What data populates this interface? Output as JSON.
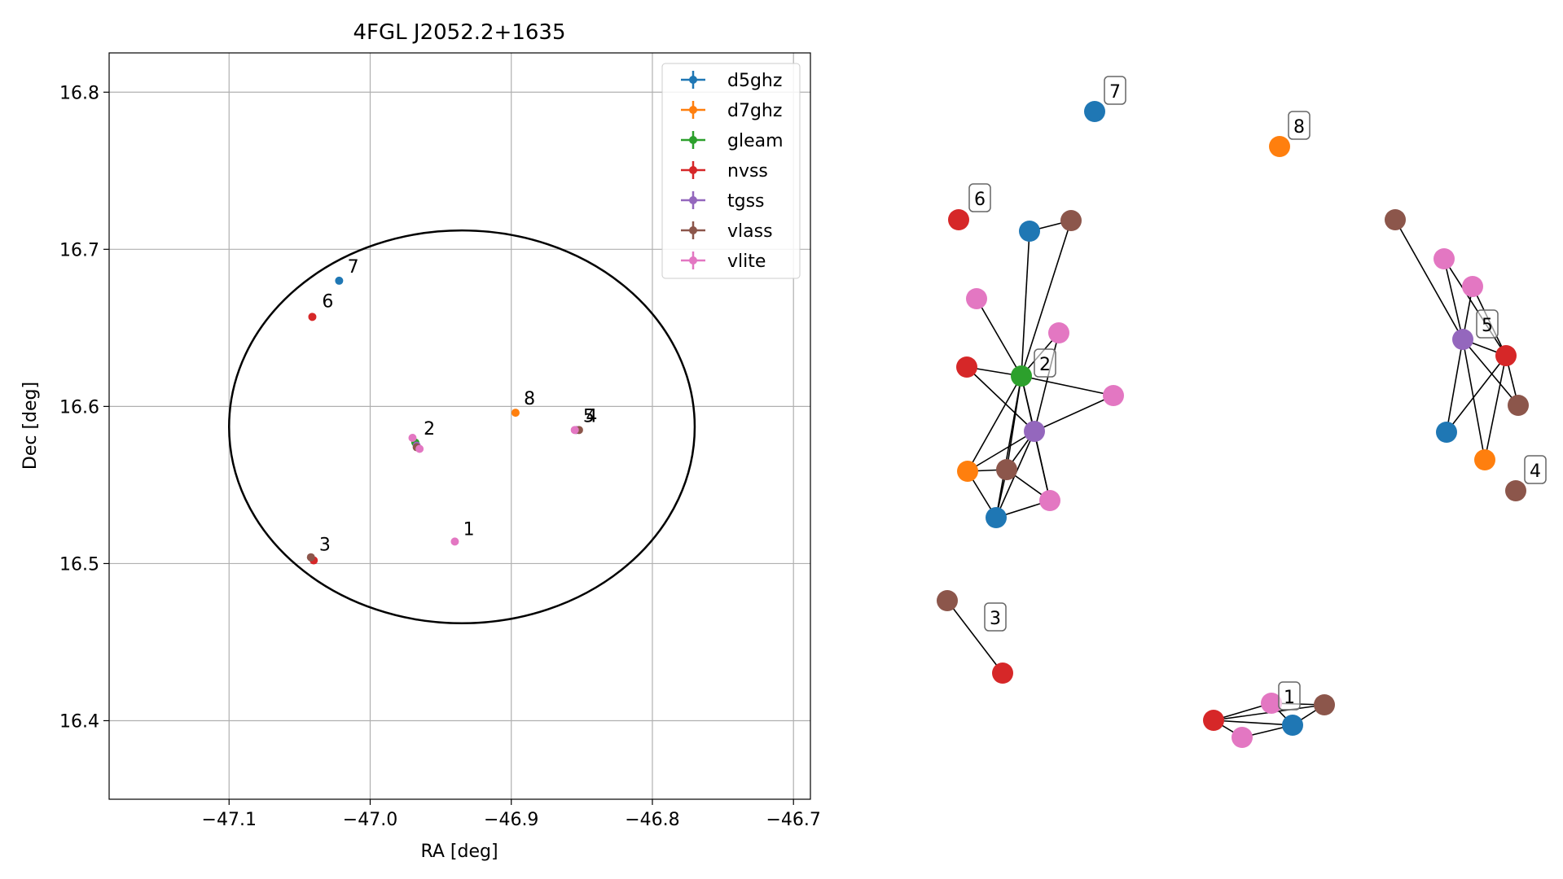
{
  "chart_data": [
    {
      "type": "scatter",
      "title": "4FGL J2052.2+1635",
      "xlabel": "RA [deg]",
      "ylabel": "Dec [deg]",
      "xlim": [
        -47.185,
        -46.688
      ],
      "ylim": [
        16.35,
        16.825
      ],
      "xticks": [
        -47.1,
        -47.0,
        -46.9,
        -46.8,
        -46.7
      ],
      "xtick_labels": [
        "−47.1",
        "−47.0",
        "−46.9",
        "−46.8",
        "−46.7"
      ],
      "yticks": [
        16.4,
        16.5,
        16.6,
        16.7,
        16.8
      ],
      "ytick_labels": [
        "16.4",
        "16.5",
        "16.6",
        "16.7",
        "16.8"
      ],
      "grid": true,
      "legend_position": "top-right",
      "series": [
        {
          "name": "d5ghz",
          "color": "#1f77b4",
          "points": [
            {
              "x": -47.022,
              "y": 16.68
            }
          ]
        },
        {
          "name": "d7ghz",
          "color": "#ff7f0e",
          "points": [
            {
              "x": -46.897,
              "y": 16.596
            }
          ]
        },
        {
          "name": "gleam",
          "color": "#2ca02c",
          "points": [
            {
              "x": -46.968,
              "y": 16.577
            }
          ]
        },
        {
          "name": "nvss",
          "color": "#d62728",
          "points": [
            {
              "x": -47.041,
              "y": 16.657
            },
            {
              "x": -47.04,
              "y": 16.502
            }
          ]
        },
        {
          "name": "tgss",
          "color": "#9467bd",
          "points": [
            {
              "x": -46.967,
              "y": 16.575
            },
            {
              "x": -46.854,
              "y": 16.585
            }
          ]
        },
        {
          "name": "vlass",
          "color": "#8c564b",
          "points": [
            {
              "x": -46.967,
              "y": 16.574
            },
            {
              "x": -47.042,
              "y": 16.504
            },
            {
              "x": -46.852,
              "y": 16.585
            }
          ]
        },
        {
          "name": "vlite",
          "color": "#e377c2",
          "points": [
            {
              "x": -46.97,
              "y": 16.58
            },
            {
              "x": -46.965,
              "y": 16.573
            },
            {
              "x": -46.94,
              "y": 16.514
            },
            {
              "x": -46.855,
              "y": 16.585
            }
          ]
        }
      ],
      "ellipse": {
        "center_x": -46.935,
        "center_y": 16.587,
        "radius_x": 0.165,
        "radius_y": 0.125
      },
      "cluster_labels": [
        {
          "text": "1",
          "x": -46.937,
          "y": 16.514
        },
        {
          "text": "2",
          "x": -46.965,
          "y": 16.578
        },
        {
          "text": "3",
          "x": -47.039,
          "y": 16.504
        },
        {
          "text": "4",
          "x": -46.85,
          "y": 16.586
        },
        {
          "text": "5",
          "x": -46.852,
          "y": 16.586
        },
        {
          "text": "6",
          "x": -47.037,
          "y": 16.659
        },
        {
          "text": "7",
          "x": -47.019,
          "y": 16.681
        },
        {
          "text": "8",
          "x": -46.894,
          "y": 16.597
        }
      ]
    },
    {
      "type": "network",
      "colors": {
        "d5ghz": "#1f77b4",
        "d7ghz": "#ff7f0e",
        "gleam": "#2ca02c",
        "nvss": "#d62728",
        "tgss": "#9467bd",
        "vlass": "#8c564b",
        "vlite": "#e377c2"
      },
      "cluster_labels": [
        "1",
        "2",
        "3",
        "4",
        "5",
        "6",
        "7",
        "8"
      ],
      "nodes": [
        {
          "id": "g2",
          "cat": "gleam"
        },
        {
          "id": "t2",
          "cat": "tgss"
        },
        {
          "id": "n2",
          "cat": "nvss"
        },
        {
          "id": "o2",
          "cat": "d7ghz"
        },
        {
          "id": "b2a",
          "cat": "d5ghz"
        },
        {
          "id": "b2b",
          "cat": "d5ghz"
        },
        {
          "id": "br2a",
          "cat": "vlass"
        },
        {
          "id": "br2b",
          "cat": "vlass"
        },
        {
          "id": "p2a",
          "cat": "vlite"
        },
        {
          "id": "p2b",
          "cat": "vlite"
        },
        {
          "id": "p2c",
          "cat": "vlite"
        },
        {
          "id": "p2d",
          "cat": "vlite"
        },
        {
          "id": "n6",
          "cat": "nvss"
        },
        {
          "id": "b7",
          "cat": "d5ghz"
        },
        {
          "id": "o8",
          "cat": "d7ghz"
        },
        {
          "id": "br3",
          "cat": "vlass"
        },
        {
          "id": "n3",
          "cat": "nvss"
        },
        {
          "id": "n1",
          "cat": "nvss"
        },
        {
          "id": "p1a",
          "cat": "vlite"
        },
        {
          "id": "p1b",
          "cat": "vlite"
        },
        {
          "id": "b1",
          "cat": "d5ghz"
        },
        {
          "id": "br1",
          "cat": "vlass"
        },
        {
          "id": "t5",
          "cat": "tgss"
        },
        {
          "id": "n5",
          "cat": "nvss"
        },
        {
          "id": "br5a",
          "cat": "vlass"
        },
        {
          "id": "br5b",
          "cat": "vlass"
        },
        {
          "id": "p5a",
          "cat": "vlite"
        },
        {
          "id": "p5b",
          "cat": "vlite"
        },
        {
          "id": "b5",
          "cat": "d5ghz"
        },
        {
          "id": "o5",
          "cat": "d7ghz"
        },
        {
          "id": "br4",
          "cat": "vlass"
        }
      ],
      "edges": [
        [
          "g2",
          "t2"
        ],
        [
          "g2",
          "n2"
        ],
        [
          "g2",
          "o2"
        ],
        [
          "g2",
          "b2a"
        ],
        [
          "g2",
          "b2b"
        ],
        [
          "g2",
          "br2a"
        ],
        [
          "g2",
          "br2b"
        ],
        [
          "g2",
          "p2a"
        ],
        [
          "g2",
          "p2b"
        ],
        [
          "g2",
          "p2c"
        ],
        [
          "g2",
          "p2d"
        ],
        [
          "t2",
          "n2"
        ],
        [
          "t2",
          "o2"
        ],
        [
          "t2",
          "b2a"
        ],
        [
          "t2",
          "br2a"
        ],
        [
          "t2",
          "p2a"
        ],
        [
          "t2",
          "p2c"
        ],
        [
          "t2",
          "p2d"
        ],
        [
          "o2",
          "b2a"
        ],
        [
          "o2",
          "br2a"
        ],
        [
          "b2a",
          "br2a"
        ],
        [
          "b2a",
          "p2d"
        ],
        [
          "br2a",
          "p2d"
        ],
        [
          "b2b",
          "br2b"
        ],
        [
          "br3",
          "n3"
        ],
        [
          "n1",
          "p1a"
        ],
        [
          "n1",
          "p1b"
        ],
        [
          "n1",
          "b1"
        ],
        [
          "n1",
          "br1"
        ],
        [
          "p1a",
          "b1"
        ],
        [
          "p1a",
          "br1"
        ],
        [
          "p1b",
          "b1"
        ],
        [
          "b1",
          "br1"
        ],
        [
          "t5",
          "n5"
        ],
        [
          "t5",
          "br5a"
        ],
        [
          "t5",
          "br5b"
        ],
        [
          "t5",
          "p5a"
        ],
        [
          "t5",
          "p5b"
        ],
        [
          "t5",
          "b5"
        ],
        [
          "t5",
          "o5"
        ],
        [
          "n5",
          "br5b"
        ],
        [
          "n5",
          "b5"
        ],
        [
          "n5",
          "o5"
        ],
        [
          "p5a",
          "n5"
        ],
        [
          "p5b",
          "n5"
        ]
      ]
    }
  ]
}
